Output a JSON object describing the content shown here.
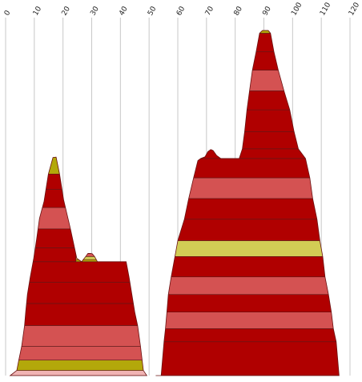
{
  "chart_data": {
    "type": "area",
    "title": "",
    "xlabel": "",
    "ylabel": "",
    "grid": true,
    "xlim": [
      0,
      120
    ],
    "x_ticks": [
      "0",
      "10",
      "20",
      "30",
      "40",
      "50",
      "60",
      "70",
      "80",
      "90",
      "100",
      "110",
      "120"
    ],
    "y_range_relative": [
      0,
      1
    ],
    "colors": {
      "dark_red": "#b00000",
      "salmon": "#d45252",
      "olive": "#b3a80a",
      "yellow": "#d2cd55",
      "light_pink": "#f0b4b4"
    },
    "shapes": [
      {
        "name": "left-mound",
        "outline_x": [
          1.6,
          3.9,
          4.6,
          5.6,
          6.6,
          7.0,
          7.6,
          8.6,
          9.8,
          10.8,
          11.8,
          13.4,
          14.9,
          16.5,
          17.6,
          18.8,
          20.2,
          22.6,
          24.8,
          26.5,
          27.9,
          28.7,
          29.5,
          30.2,
          31.0,
          32.0,
          34.0,
          37.0,
          40.0,
          42.0,
          43.0,
          44.0,
          45.0,
          46.0,
          47.0,
          48.0,
          49.2
        ],
        "outline_y": [
          0.0,
          0.015,
          0.045,
          0.085,
          0.145,
          0.184,
          0.235,
          0.286,
          0.34,
          0.395,
          0.455,
          0.505,
          0.584,
          0.632,
          0.633,
          0.584,
          0.51,
          0.425,
          0.34,
          0.33,
          0.345,
          0.354,
          0.354,
          0.353,
          0.345,
          0.33,
          0.33,
          0.33,
          0.33,
          0.33,
          0.286,
          0.235,
          0.184,
          0.145,
          0.085,
          0.015,
          0.0
        ],
        "bands": [
          {
            "y0": 0.0,
            "y1": 0.015,
            "color": "light_pink"
          },
          {
            "y0": 0.015,
            "y1": 0.045,
            "color": "olive"
          },
          {
            "y0": 0.045,
            "y1": 0.085,
            "color": "salmon"
          },
          {
            "y0": 0.085,
            "y1": 0.145,
            "color": "salmon"
          },
          {
            "y0": 0.145,
            "y1": 0.209,
            "color": "dark_red"
          },
          {
            "y0": 0.209,
            "y1": 0.27,
            "color": "dark_red"
          },
          {
            "y0": 0.27,
            "y1": 0.33,
            "color": "dark_red"
          },
          {
            "y0": 0.33,
            "y1": 0.336,
            "color": "olive"
          },
          {
            "y0": 0.336,
            "y1": 0.345,
            "color": "yellow"
          },
          {
            "y0": 0.345,
            "y1": 0.354,
            "color": "salmon"
          },
          {
            "y0": 0.33,
            "y1": 0.37,
            "color": "dark_red",
            "x_limit": 24.5
          },
          {
            "y0": 0.37,
            "y1": 0.425,
            "color": "dark_red",
            "x_limit": 24.5
          },
          {
            "y0": 0.425,
            "y1": 0.487,
            "color": "salmon",
            "x_limit": 24.5
          },
          {
            "y0": 0.487,
            "y1": 0.54,
            "color": "dark_red",
            "x_limit": 24.5
          },
          {
            "y0": 0.54,
            "y1": 0.584,
            "color": "dark_red",
            "x_limit": 24.5
          },
          {
            "y0": 0.584,
            "y1": 0.634,
            "color": "olive",
            "x_limit": 24.5
          }
        ]
      },
      {
        "name": "right-mound",
        "outline_x": [
          52.3,
          54.2,
          55.2,
          55.7,
          56.2,
          56.7,
          57.7,
          59.0,
          60.0,
          62.3,
          63.8,
          65.5,
          67.0,
          68.0,
          69.5,
          70.5,
          71.5,
          72.3,
          73.5,
          75.0,
          77.0,
          79.5,
          81.4,
          82.5,
          83.3,
          84.1,
          85.0,
          86.0,
          87.3,
          88.5,
          89.5,
          91.5,
          92.3,
          93.5,
          95.0,
          97.0,
          99.0,
          100.5,
          102.0,
          104.5,
          106.0,
          107.0,
          108.5,
          109.5,
          110.5,
          111.3,
          112.5,
          113.5,
          114.2,
          115.2,
          116.2
        ],
        "outline_y": [
          0.0,
          0.0,
          0.098,
          0.136,
          0.184,
          0.235,
          0.286,
          0.345,
          0.391,
          0.453,
          0.513,
          0.573,
          0.623,
          0.629,
          0.634,
          0.649,
          0.655,
          0.652,
          0.638,
          0.629,
          0.629,
          0.629,
          0.629,
          0.657,
          0.707,
          0.77,
          0.825,
          0.885,
          0.938,
          0.992,
          1.0,
          1.0,
          0.992,
          0.938,
          0.885,
          0.825,
          0.77,
          0.707,
          0.657,
          0.629,
          0.573,
          0.513,
          0.453,
          0.391,
          0.345,
          0.286,
          0.235,
          0.184,
          0.136,
          0.098,
          0.0
        ],
        "bands": [
          {
            "y0": 0.0,
            "y1": 0.098,
            "color": "dark_red"
          },
          {
            "y0": 0.098,
            "y1": 0.136,
            "color": "dark_red"
          },
          {
            "y0": 0.136,
            "y1": 0.184,
            "color": "salmon"
          },
          {
            "y0": 0.184,
            "y1": 0.235,
            "color": "dark_red"
          },
          {
            "y0": 0.235,
            "y1": 0.286,
            "color": "salmon"
          },
          {
            "y0": 0.286,
            "y1": 0.345,
            "color": "dark_red"
          },
          {
            "y0": 0.345,
            "y1": 0.391,
            "color": "yellow"
          },
          {
            "y0": 0.391,
            "y1": 0.453,
            "color": "dark_red"
          },
          {
            "y0": 0.453,
            "y1": 0.513,
            "color": "dark_red"
          },
          {
            "y0": 0.513,
            "y1": 0.573,
            "color": "salmon"
          },
          {
            "y0": 0.573,
            "y1": 0.629,
            "color": "dark_red"
          },
          {
            "y0": 0.629,
            "y1": 0.657,
            "color": "dark_red"
          },
          {
            "y0": 0.657,
            "y1": 0.707,
            "color": "dark_red"
          },
          {
            "y0": 0.707,
            "y1": 0.77,
            "color": "dark_red"
          },
          {
            "y0": 0.77,
            "y1": 0.825,
            "color": "dark_red"
          },
          {
            "y0": 0.825,
            "y1": 0.885,
            "color": "salmon"
          },
          {
            "y0": 0.885,
            "y1": 0.938,
            "color": "dark_red"
          },
          {
            "y0": 0.938,
            "y1": 0.992,
            "color": "dark_red"
          },
          {
            "y0": 0.992,
            "y1": 1.0,
            "color": "olive"
          }
        ]
      }
    ]
  }
}
